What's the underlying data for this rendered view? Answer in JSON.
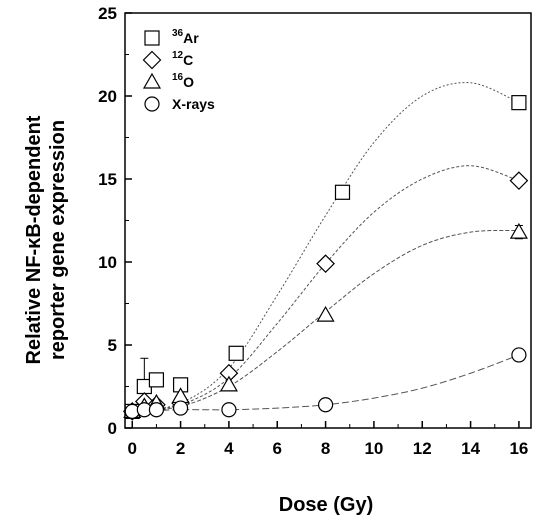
{
  "chart_data": {
    "type": "scatter",
    "xlabel": "Dose (Gy)",
    "ylabel_line1": "Relative NF-κB-dependent",
    "ylabel_line2": "reporter gene expression",
    "ylim": [
      0,
      25
    ],
    "y_ticks": [
      0,
      5,
      10,
      15,
      20,
      25
    ],
    "x_ticks": [
      0,
      2,
      4,
      6,
      8,
      10,
      12,
      14,
      16
    ],
    "x_tick_labels": [
      "0",
      "2",
      "4",
      "6",
      "8",
      "10",
      "12",
      "14",
      "16"
    ],
    "legend_position": "top-left",
    "grid": false,
    "series": [
      {
        "name": "Ar",
        "isotope": "36",
        "marker": "square",
        "points": [
          {
            "x": 0,
            "y": 1.0,
            "err": 0.3
          },
          {
            "x": 0.5,
            "y": 2.5,
            "err": 1.7
          },
          {
            "x": 1,
            "y": 2.9,
            "err": 0
          },
          {
            "x": 2,
            "y": 2.6,
            "err": 0
          },
          {
            "x": 4.3,
            "y": 4.5,
            "err": 0
          },
          {
            "x": 8.7,
            "y": 14.2,
            "err": 0
          },
          {
            "x": 16,
            "y": 19.6,
            "err": 0
          }
        ],
        "fit": [
          {
            "x": 0,
            "y": 1.0
          },
          {
            "x": 2,
            "y": 1.5
          },
          {
            "x": 4,
            "y": 3.6
          },
          {
            "x": 6,
            "y": 8.0
          },
          {
            "x": 8,
            "y": 12.8
          },
          {
            "x": 10,
            "y": 17.2
          },
          {
            "x": 12,
            "y": 20.0
          },
          {
            "x": 14,
            "y": 20.8
          },
          {
            "x": 16,
            "y": 19.6
          }
        ]
      },
      {
        "name": "C",
        "isotope": "12",
        "marker": "diamond",
        "points": [
          {
            "x": 0,
            "y": 1.0,
            "err": 0
          },
          {
            "x": 0.5,
            "y": 1.6,
            "err": 0
          },
          {
            "x": 1,
            "y": 1.4,
            "err": 0
          },
          {
            "x": 2,
            "y": 1.5,
            "err": 0
          },
          {
            "x": 4,
            "y": 3.3,
            "err": 0
          },
          {
            "x": 8,
            "y": 9.9,
            "err": 0
          },
          {
            "x": 16,
            "y": 14.9,
            "err": 0
          }
        ],
        "fit": [
          {
            "x": 0,
            "y": 1.0
          },
          {
            "x": 2,
            "y": 1.4
          },
          {
            "x": 4,
            "y": 3.0
          },
          {
            "x": 6,
            "y": 6.3
          },
          {
            "x": 8,
            "y": 9.9
          },
          {
            "x": 10,
            "y": 13.0
          },
          {
            "x": 12,
            "y": 15.0
          },
          {
            "x": 14,
            "y": 15.8
          },
          {
            "x": 16,
            "y": 14.9
          }
        ]
      },
      {
        "name": "O",
        "isotope": "16",
        "marker": "triangle",
        "points": [
          {
            "x": 0,
            "y": 1.0,
            "err": 0
          },
          {
            "x": 0.5,
            "y": 1.3,
            "err": 0
          },
          {
            "x": 1,
            "y": 1.5,
            "err": 0
          },
          {
            "x": 2,
            "y": 1.9,
            "err": 0
          },
          {
            "x": 4,
            "y": 2.6,
            "err": 0
          },
          {
            "x": 8,
            "y": 6.8,
            "err": 0
          },
          {
            "x": 16,
            "y": 11.8,
            "err": 0.4
          }
        ],
        "fit": [
          {
            "x": 0,
            "y": 1.0
          },
          {
            "x": 2,
            "y": 1.3
          },
          {
            "x": 4,
            "y": 2.5
          },
          {
            "x": 6,
            "y": 4.6
          },
          {
            "x": 8,
            "y": 7.0
          },
          {
            "x": 10,
            "y": 9.3
          },
          {
            "x": 12,
            "y": 11.0
          },
          {
            "x": 14,
            "y": 11.8
          },
          {
            "x": 16,
            "y": 11.9
          }
        ]
      },
      {
        "name": "X-rays",
        "isotope": "",
        "marker": "circle",
        "points": [
          {
            "x": 0,
            "y": 1.0,
            "err": 0
          },
          {
            "x": 0.5,
            "y": 1.1,
            "err": 0
          },
          {
            "x": 1,
            "y": 1.1,
            "err": 0
          },
          {
            "x": 2,
            "y": 1.2,
            "err": 0
          },
          {
            "x": 4,
            "y": 1.1,
            "err": 0
          },
          {
            "x": 8,
            "y": 1.4,
            "err": 0
          },
          {
            "x": 16,
            "y": 4.4,
            "err": 0
          }
        ],
        "fit": [
          {
            "x": 0,
            "y": 1.0
          },
          {
            "x": 2,
            "y": 1.1
          },
          {
            "x": 4,
            "y": 1.1
          },
          {
            "x": 6,
            "y": 1.2
          },
          {
            "x": 8,
            "y": 1.4
          },
          {
            "x": 10,
            "y": 1.8
          },
          {
            "x": 12,
            "y": 2.4
          },
          {
            "x": 14,
            "y": 3.3
          },
          {
            "x": 16,
            "y": 4.4
          }
        ]
      }
    ]
  }
}
